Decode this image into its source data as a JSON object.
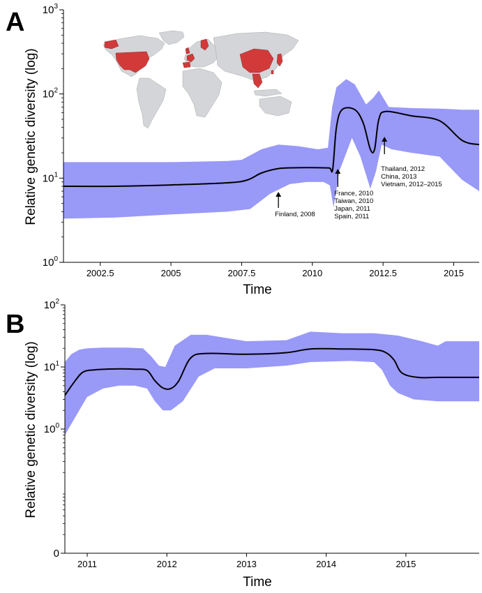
{
  "colors": {
    "ci_band": "#9999f8",
    "median_line": "#000000",
    "map_land": "#d3d5d8",
    "map_highlight": "#d23a3a"
  },
  "chart_data": [
    {
      "panel": "A",
      "type": "area",
      "xlabel": "Time",
      "ylabel": "Relative genetic diversity (log)",
      "yscale": "log",
      "xlim": [
        2001.2,
        2015.9
      ],
      "ylim": [
        1,
        1000
      ],
      "xticks": [
        2002.5,
        2005,
        2007.5,
        2010,
        2012.5,
        2015
      ],
      "xtick_labels": [
        "2002.5",
        "2005",
        "2007.5",
        "2010",
        "2012.5",
        "2015"
      ],
      "yticks": [
        1,
        10,
        100,
        1000
      ],
      "ytick_base": "10",
      "ytick_exps": [
        "0",
        "1",
        "2",
        "3"
      ],
      "grid": false,
      "inset": "world map with highlighted countries",
      "series": [
        {
          "x": [
            2001.2,
            2003,
            2005,
            2007,
            2007.7,
            2008.2,
            2008.8,
            2009.5,
            2010.2,
            2010.6,
            2010.72,
            2010.85,
            2011.05,
            2011.5,
            2011.8,
            2012.05,
            2012.2,
            2012.35,
            2012.6,
            2013.5,
            2014.5,
            2015.3,
            2015.9
          ],
          "values": [
            8,
            8,
            8.3,
            8.8,
            9.5,
            11.5,
            13,
            13.3,
            13.3,
            13.2,
            12.8,
            40,
            65,
            65,
            45,
            22,
            22,
            50,
            62,
            55,
            48,
            28,
            25
          ]
        },
        {
          "x": [
            2001.2,
            2003,
            2005,
            2007,
            2007.8,
            2008.5,
            2009.2,
            2009.8,
            2010.4,
            2010.62,
            2010.75,
            2010.95,
            2011.4,
            2011.7,
            2012.05,
            2012.25,
            2012.45,
            2012.8,
            2013.5,
            2014.5,
            2015.3,
            2015.9
          ],
          "values": [
            3.3,
            3.4,
            3.7,
            4,
            4.3,
            6.5,
            8.5,
            9,
            9,
            8.2,
            4.5,
            12,
            30,
            18,
            7.5,
            12,
            25,
            22,
            20,
            18,
            9.5,
            7
          ]
        },
        {
          "x": [
            2001.2,
            2003,
            2005,
            2007,
            2007.5,
            2008.2,
            2008.8,
            2009.5,
            2010.2,
            2010.55,
            2010.7,
            2010.85,
            2011.2,
            2011.5,
            2011.9,
            2012.15,
            2012.35,
            2012.7,
            2013.5,
            2014.5,
            2015.3,
            2015.9
          ],
          "values": [
            15.5,
            15.5,
            15.5,
            16,
            16.5,
            22,
            25,
            24,
            22,
            23,
            70,
            120,
            150,
            130,
            75,
            90,
            110,
            70,
            68,
            67,
            65,
            65
          ]
        }
      ],
      "annotations": [
        {
          "x": 2008.8,
          "lines": [
            "Finland, 2008"
          ]
        },
        {
          "x": 2010.9,
          "lines": [
            "France, 2010",
            "Taiwan, 2010",
            "Japan, 2011",
            "Spain, 2011"
          ]
        },
        {
          "x": 2012.55,
          "lines": [
            "Thailand, 2012",
            "China, 2013",
            "Vietnam, 2012–2015"
          ]
        }
      ]
    },
    {
      "panel": "B",
      "type": "area",
      "xlabel": "Time",
      "ylabel": "Relative genetic diversity (log)",
      "yscale": "log",
      "xlim": [
        2010.72,
        2015.92
      ],
      "ylim": [
        0.01,
        100
      ],
      "xticks": [
        2011,
        2012,
        2013,
        2014,
        2015
      ],
      "xtick_labels": [
        "2011",
        "2012",
        "2013",
        "2014",
        "2015"
      ],
      "yticks": [
        0.01,
        1,
        10,
        100
      ],
      "ytick_plain": "0",
      "ytick_base": "10",
      "ytick_exps": [
        "0",
        "1",
        "2"
      ],
      "grid": false,
      "series": [
        {
          "x": [
            2010.72,
            2010.85,
            2010.95,
            2011.1,
            2011.4,
            2011.6,
            2011.75,
            2011.85,
            2011.95,
            2012.05,
            2012.15,
            2012.3,
            2012.5,
            2013,
            2013.5,
            2013.8,
            2014.2,
            2014.6,
            2014.75,
            2014.85,
            2014.95,
            2015.15,
            2015.4,
            2015.92
          ],
          "values": [
            3.5,
            6,
            8.3,
            9,
            9.3,
            9.2,
            8.8,
            6,
            4.6,
            4.5,
            6,
            14,
            16.5,
            16,
            17,
            19.5,
            19.5,
            19,
            17,
            13,
            8,
            6.8,
            6.8,
            6.8
          ]
        },
        {
          "x": [
            2010.72,
            2010.8,
            2010.9,
            2011,
            2011.2,
            2011.4,
            2011.6,
            2011.75,
            2011.85,
            2011.95,
            2012.05,
            2012.2,
            2012.4,
            2012.6,
            2013,
            2013.5,
            2013.8,
            2014.3,
            2014.6,
            2014.7,
            2014.8,
            2014.9,
            2015.1,
            2015.4,
            2015.92
          ],
          "values": [
            0.8,
            1.2,
            2,
            3.3,
            4.5,
            5,
            5,
            4.5,
            2.8,
            2,
            2,
            2.8,
            7,
            9.5,
            9.5,
            10.5,
            12,
            12.5,
            12,
            9,
            5,
            3.8,
            3,
            2.8,
            2.8
          ]
        },
        {
          "x": [
            2010.72,
            2010.8,
            2010.9,
            2011,
            2011.2,
            2011.5,
            2011.7,
            2011.8,
            2011.9,
            2011.98,
            2012.1,
            2012.3,
            2012.5,
            2013,
            2013.5,
            2013.8,
            2014.2,
            2014.6,
            2014.8,
            2014.9,
            2015.2,
            2015.4,
            2015.5,
            2015.92
          ],
          "values": [
            12,
            16,
            19,
            20,
            20.5,
            20.5,
            20,
            15,
            10.5,
            10,
            22,
            33,
            33,
            26,
            27,
            37,
            35,
            35,
            33,
            32,
            26,
            22,
            26,
            26
          ]
        }
      ]
    }
  ]
}
